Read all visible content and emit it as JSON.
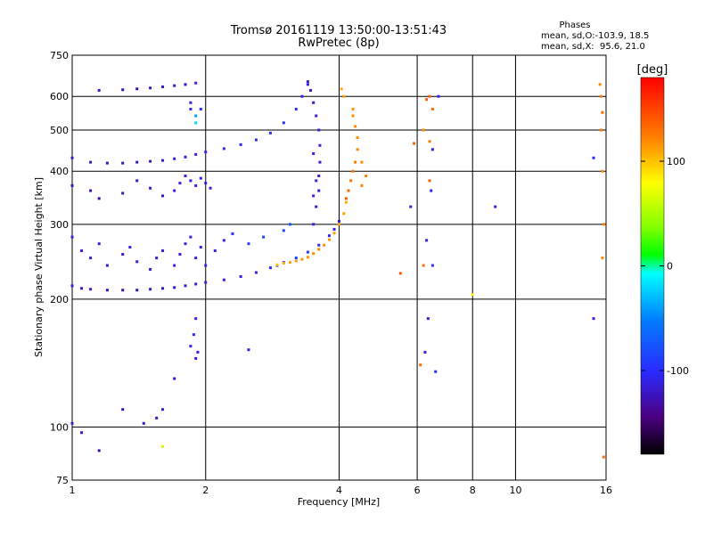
{
  "title": {
    "line1": "Tromsø 20161119 13:50:00-13:51:43",
    "line2": "RwPretec (8p)"
  },
  "phases_box": {
    "heading": "Phases",
    "line1": "mean, sd,O:-103.9, 18.5",
    "line2": "mean, sd,X:  95.6, 21.0"
  },
  "colorbar": {
    "unit_label": "[deg]",
    "range": [
      -180,
      180
    ],
    "ticks": [
      {
        "value": 100,
        "label": "100"
      },
      {
        "value": 0,
        "label": "0"
      },
      {
        "value": -100,
        "label": "-100"
      }
    ]
  },
  "chart_data": {
    "type": "scatter",
    "title": "Tromsø 20161119 13:50:00-13:51:43",
    "subtitle": "RwPretec (8p)",
    "xlabel": "Frequency [MHz]",
    "ylabel": "Stationary phase Virtual Height [km]",
    "x_scale": "log",
    "y_scale": "log",
    "xlim": [
      1,
      16
    ],
    "ylim": [
      75,
      750
    ],
    "grid": true,
    "x_ticks": [
      {
        "value": 1,
        "label": "1"
      },
      {
        "value": 2,
        "label": "2"
      },
      {
        "value": 4,
        "label": "4"
      },
      {
        "value": 6,
        "label": "6"
      },
      {
        "value": 8,
        "label": "8"
      },
      {
        "value": 10,
        "label": "10"
      },
      {
        "value": 16,
        "label": "16"
      }
    ],
    "y_ticks": [
      {
        "value": 75,
        "label": "75"
      },
      {
        "value": 100,
        "label": "100"
      },
      {
        "value": 200,
        "label": "200"
      },
      {
        "value": 300,
        "label": "300"
      },
      {
        "value": 400,
        "label": "400"
      },
      {
        "value": 500,
        "label": "500"
      },
      {
        "value": 600,
        "label": "600"
      },
      {
        "value": 750,
        "label": "750"
      }
    ],
    "color_by": "phase_deg",
    "series": [
      {
        "points": [
          [
            1.0,
            215,
            -115
          ],
          [
            1.05,
            212,
            -118
          ],
          [
            1.1,
            211,
            -120
          ],
          [
            1.2,
            210,
            -125
          ],
          [
            1.3,
            210,
            -128
          ],
          [
            1.4,
            210,
            -125
          ],
          [
            1.5,
            211,
            -122
          ],
          [
            1.6,
            212,
            -120
          ],
          [
            1.7,
            213,
            -118
          ],
          [
            1.8,
            215,
            -116
          ],
          [
            1.9,
            217,
            -114
          ],
          [
            2.0,
            219,
            -112
          ],
          [
            2.2,
            222,
            -110
          ],
          [
            2.4,
            226,
            -108
          ],
          [
            2.6,
            231,
            -106
          ],
          [
            2.8,
            237,
            -104
          ],
          [
            2.9,
            240,
            -100
          ],
          [
            3.0,
            244,
            -95
          ],
          [
            3.2,
            250,
            -92
          ],
          [
            3.4,
            258,
            -95
          ],
          [
            3.6,
            268,
            -105
          ],
          [
            3.8,
            282,
            -108
          ],
          [
            3.9,
            292,
            -110
          ],
          [
            4.0,
            305,
            -112
          ]
        ]
      },
      {
        "points": [
          [
            2.9,
            241,
            100
          ],
          [
            3.0,
            243,
            105
          ],
          [
            3.1,
            244,
            110
          ],
          [
            3.2,
            246,
            112
          ],
          [
            3.3,
            248,
            115
          ],
          [
            3.4,
            251,
            116
          ],
          [
            3.5,
            256,
            118
          ],
          [
            3.6,
            262,
            120
          ],
          [
            3.7,
            268,
            118
          ],
          [
            3.8,
            276,
            115
          ],
          [
            3.9,
            286,
            112
          ],
          [
            4.0,
            300,
            110
          ],
          [
            4.1,
            318,
            110
          ],
          [
            4.15,
            338,
            108
          ]
        ]
      },
      {
        "points": [
          [
            3.5,
            300,
            -110
          ],
          [
            3.55,
            330,
            -112
          ],
          [
            3.6,
            360,
            -115
          ],
          [
            3.6,
            390,
            -112
          ],
          [
            3.62,
            420,
            -110
          ],
          [
            3.62,
            460,
            -108
          ],
          [
            3.6,
            500,
            -110
          ],
          [
            3.55,
            540,
            -112
          ],
          [
            3.5,
            580,
            -115
          ],
          [
            3.45,
            620,
            -118
          ],
          [
            3.4,
            650,
            -120
          ],
          [
            3.5,
            440,
            -105
          ],
          [
            3.55,
            380,
            -108
          ],
          [
            3.5,
            350,
            -110
          ]
        ]
      },
      {
        "points": [
          [
            4.15,
            345,
            140
          ],
          [
            4.2,
            360,
            135
          ],
          [
            4.25,
            380,
            130
          ],
          [
            4.3,
            400,
            128
          ],
          [
            4.35,
            420,
            125
          ],
          [
            4.4,
            450,
            120
          ],
          [
            4.4,
            480,
            118
          ],
          [
            4.35,
            510,
            120
          ],
          [
            4.3,
            540,
            118
          ],
          [
            4.3,
            560,
            115
          ],
          [
            4.5,
            370,
            122
          ],
          [
            4.6,
            390,
            125
          ],
          [
            4.5,
            420,
            120
          ],
          [
            4.1,
            600,
            110
          ],
          [
            4.05,
            625,
            108
          ]
        ]
      },
      {
        "points": [
          [
            1.0,
            430,
            -120
          ],
          [
            1.1,
            420,
            -125
          ],
          [
            1.2,
            418,
            -128
          ],
          [
            1.3,
            418,
            -125
          ],
          [
            1.4,
            420,
            -123
          ],
          [
            1.5,
            422,
            -120
          ],
          [
            1.6,
            424,
            -118
          ],
          [
            1.7,
            428,
            -115
          ],
          [
            1.8,
            432,
            -112
          ],
          [
            1.9,
            438,
            -110
          ],
          [
            2.0,
            444,
            -108
          ],
          [
            2.2,
            452,
            -105
          ],
          [
            2.4,
            462,
            -103
          ],
          [
            2.6,
            474,
            -100
          ],
          [
            2.8,
            492,
            -95
          ],
          [
            3.0,
            520,
            -95
          ],
          [
            3.2,
            560,
            -100
          ],
          [
            3.3,
            600,
            -105
          ],
          [
            3.4,
            640,
            -110
          ]
        ]
      },
      {
        "points": [
          [
            1.15,
            620,
            -120
          ],
          [
            1.3,
            622,
            -125
          ],
          [
            1.4,
            625,
            -128
          ],
          [
            1.5,
            628,
            -125
          ],
          [
            1.6,
            632,
            -122
          ],
          [
            1.7,
            636,
            -118
          ],
          [
            1.8,
            640,
            -115
          ],
          [
            1.9,
            645,
            -110
          ]
        ]
      },
      {
        "points": [
          [
            1.0,
            280,
            -110
          ],
          [
            1.05,
            260,
            -112
          ],
          [
            1.1,
            250,
            -115
          ],
          [
            1.15,
            270,
            -112
          ],
          [
            1.2,
            240,
            -118
          ],
          [
            1.3,
            255,
            -115
          ],
          [
            1.35,
            265,
            -110
          ],
          [
            1.4,
            245,
            -112
          ],
          [
            1.5,
            235,
            -115
          ],
          [
            1.55,
            250,
            -110
          ],
          [
            1.6,
            260,
            -108
          ],
          [
            1.7,
            240,
            -112
          ],
          [
            1.75,
            255,
            -110
          ],
          [
            1.8,
            270,
            -105
          ],
          [
            1.85,
            280,
            -108
          ],
          [
            1.9,
            250,
            -112
          ],
          [
            1.95,
            265,
            -110
          ],
          [
            2.0,
            240,
            -110
          ],
          [
            2.1,
            260,
            -108
          ],
          [
            2.2,
            275,
            -105
          ],
          [
            2.3,
            285,
            -100
          ],
          [
            2.5,
            270,
            -90
          ],
          [
            2.7,
            280,
            -85
          ],
          [
            3.0,
            290,
            -80
          ],
          [
            3.1,
            300,
            -75
          ]
        ]
      },
      {
        "points": [
          [
            1.0,
            370,
            -125
          ],
          [
            1.1,
            360,
            -128
          ],
          [
            1.15,
            345,
            -130
          ],
          [
            1.3,
            355,
            -125
          ],
          [
            1.4,
            380,
            -120
          ],
          [
            1.5,
            365,
            -118
          ],
          [
            1.6,
            350,
            -122
          ],
          [
            1.7,
            360,
            -110
          ],
          [
            1.75,
            375,
            -108
          ],
          [
            1.8,
            390,
            -105
          ],
          [
            1.85,
            380,
            -108
          ],
          [
            1.9,
            370,
            -110
          ],
          [
            1.95,
            385,
            -106
          ],
          [
            2.0,
            375,
            -108
          ],
          [
            2.05,
            365,
            -110
          ]
        ]
      },
      {
        "points": [
          [
            1.85,
            560,
            -100
          ],
          [
            1.9,
            540,
            -40
          ],
          [
            1.9,
            520,
            -20
          ],
          [
            1.85,
            580,
            -110
          ],
          [
            1.95,
            560,
            -100
          ],
          [
            1.9,
            180,
            -110
          ],
          [
            1.88,
            165,
            -100
          ],
          [
            1.85,
            155,
            -105
          ],
          [
            1.92,
            150,
            -108
          ],
          [
            1.9,
            145,
            -110
          ],
          [
            1.7,
            130,
            -120
          ],
          [
            1.55,
            105,
            -125
          ],
          [
            1.45,
            102,
            -118
          ],
          [
            1.6,
            110,
            -110
          ],
          [
            1.3,
            110,
            -125
          ],
          [
            1.15,
            88,
            -130
          ],
          [
            1.05,
            97,
            -120
          ],
          [
            1.0,
            102,
            -115
          ],
          [
            1.6,
            90,
            60
          ],
          [
            2.5,
            152,
            -108
          ]
        ]
      },
      {
        "points": [
          [
            6.3,
            590,
            140
          ],
          [
            6.4,
            600,
            135
          ],
          [
            6.5,
            560,
            130
          ],
          [
            6.7,
            600,
            -110
          ],
          [
            6.2,
            500,
            120
          ],
          [
            6.4,
            470,
            125
          ],
          [
            6.5,
            450,
            -110
          ],
          [
            6.4,
            380,
            140
          ],
          [
            6.45,
            360,
            -105
          ],
          [
            6.3,
            275,
            -110
          ],
          [
            6.2,
            240,
            130
          ],
          [
            6.5,
            240,
            -100
          ],
          [
            6.35,
            180,
            -110
          ],
          [
            6.25,
            150,
            -115
          ],
          [
            6.1,
            140,
            130
          ],
          [
            6.6,
            135,
            -100
          ],
          [
            5.9,
            465,
            135
          ],
          [
            5.5,
            230,
            140
          ],
          [
            5.8,
            330,
            -110
          ],
          [
            9.0,
            330,
            -110
          ],
          [
            8.0,
            205,
            80
          ],
          [
            15.0,
            430,
            -100
          ],
          [
            15.5,
            640,
            120
          ],
          [
            15.6,
            600,
            125
          ],
          [
            15.7,
            550,
            130
          ],
          [
            15.6,
            500,
            128
          ],
          [
            15.7,
            400,
            120
          ],
          [
            15.8,
            300,
            125
          ],
          [
            15.7,
            250,
            120
          ],
          [
            15.8,
            85,
            130
          ],
          [
            15.0,
            180,
            -110
          ]
        ]
      }
    ]
  }
}
